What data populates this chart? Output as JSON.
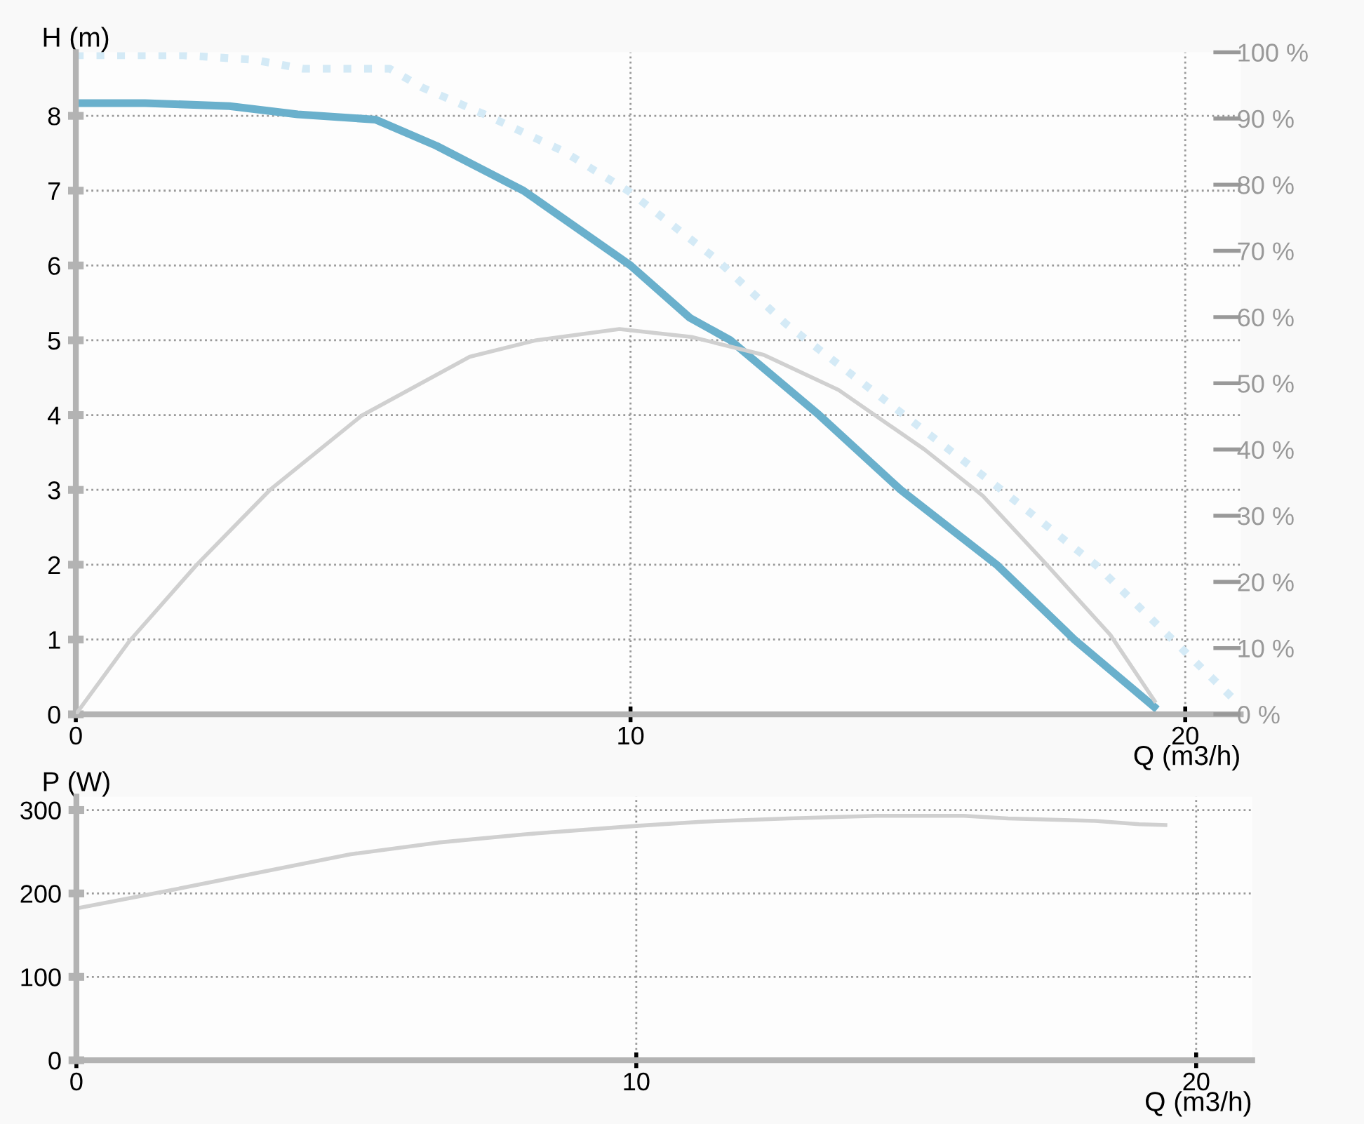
{
  "chart_data": [
    {
      "type": "line",
      "xlabel": "Q (m3/h)",
      "ylabel": "H (m)",
      "xlim": [
        0,
        21
      ],
      "xticks": [
        0,
        10,
        20
      ],
      "ylim": [
        0,
        8.85
      ],
      "yticks": [
        0,
        1,
        2,
        3,
        4,
        5,
        6,
        7,
        8
      ],
      "y2lim": [
        0,
        100
      ],
      "y2ticks": [
        {
          "value": 0,
          "label": "0 %"
        },
        {
          "value": 10,
          "label": "10 %"
        },
        {
          "value": 20,
          "label": "20 %"
        },
        {
          "value": 30,
          "label": "30 %"
        },
        {
          "value": 40,
          "label": "40 %"
        },
        {
          "value": 50,
          "label": "50 %"
        },
        {
          "value": 60,
          "label": "60 %"
        },
        {
          "value": 70,
          "label": "70 %"
        },
        {
          "value": 80,
          "label": "80 %"
        },
        {
          "value": 90,
          "label": "90 %"
        },
        {
          "value": 100,
          "label": "100 %"
        }
      ],
      "grid": true,
      "legend": false,
      "series": [
        {
          "color": "#d4eaf6",
          "line_style": "dotted",
          "x": [
            0,
            1.93,
            3.2,
            4.1,
            5.66,
            6.24,
            7.43,
            8.78,
            9.97,
            11.52,
            12.8,
            14.95,
            16.67,
            18.4,
            19.7,
            20.99
          ],
          "values": [
            8.81,
            8.81,
            8.75,
            8.63,
            8.63,
            8.38,
            8.0,
            7.53,
            6.99,
            6.1,
            5.22,
            3.99,
            3.01,
            1.99,
            1.05,
            0.12
          ]
        },
        {
          "color": "#d0d0d0",
          "axis": "y2",
          "line_style": "solid",
          "x": [
            0,
            0.96,
            2.18,
            3.5,
            5.15,
            7.1,
            8.3,
            9.8,
            11.1,
            12.4,
            13.75,
            15.3,
            16.35,
            17.46,
            18.65,
            19.45
          ],
          "values": [
            0,
            11,
            22.6,
            33.9,
            45.1,
            54,
            56.5,
            58.2,
            57,
            54.3,
            49,
            40,
            33,
            23,
            12,
            2
          ]
        },
        {
          "color": "#6ab0cc",
          "line_style": "solid",
          "x": [
            0,
            1.25,
            2.77,
            4.0,
            5.4,
            6.5,
            8.07,
            10.0,
            11.07,
            11.8,
            13.4,
            14.87,
            16.6,
            18.0,
            19.44
          ],
          "values": [
            8.17,
            8.17,
            8.13,
            8.02,
            7.95,
            7.6,
            7.0,
            6.0,
            5.3,
            5.0,
            4.0,
            3.0,
            2.0,
            1.0,
            0.1
          ]
        }
      ]
    },
    {
      "type": "line",
      "xlabel": "Q (m3/h)",
      "ylabel": "P (W)",
      "xlim": [
        0,
        21
      ],
      "xticks": [
        0,
        10,
        20
      ],
      "ylim": [
        0,
        316
      ],
      "yticks": [
        0,
        100,
        200,
        300
      ],
      "grid": true,
      "legend": false,
      "series": [
        {
          "color": "#d0d0d0",
          "line_style": "solid",
          "x": [
            0,
            1.77,
            3.33,
            4.9,
            6.46,
            8.03,
            10.0,
            11.16,
            12.72,
            14.29,
            15.85,
            16.64,
            18.2,
            18.98,
            19.45
          ],
          "values": [
            182,
            205,
            226,
            247,
            261,
            271,
            281,
            286,
            290,
            293,
            293,
            290,
            287,
            283,
            282
          ]
        }
      ]
    }
  ]
}
